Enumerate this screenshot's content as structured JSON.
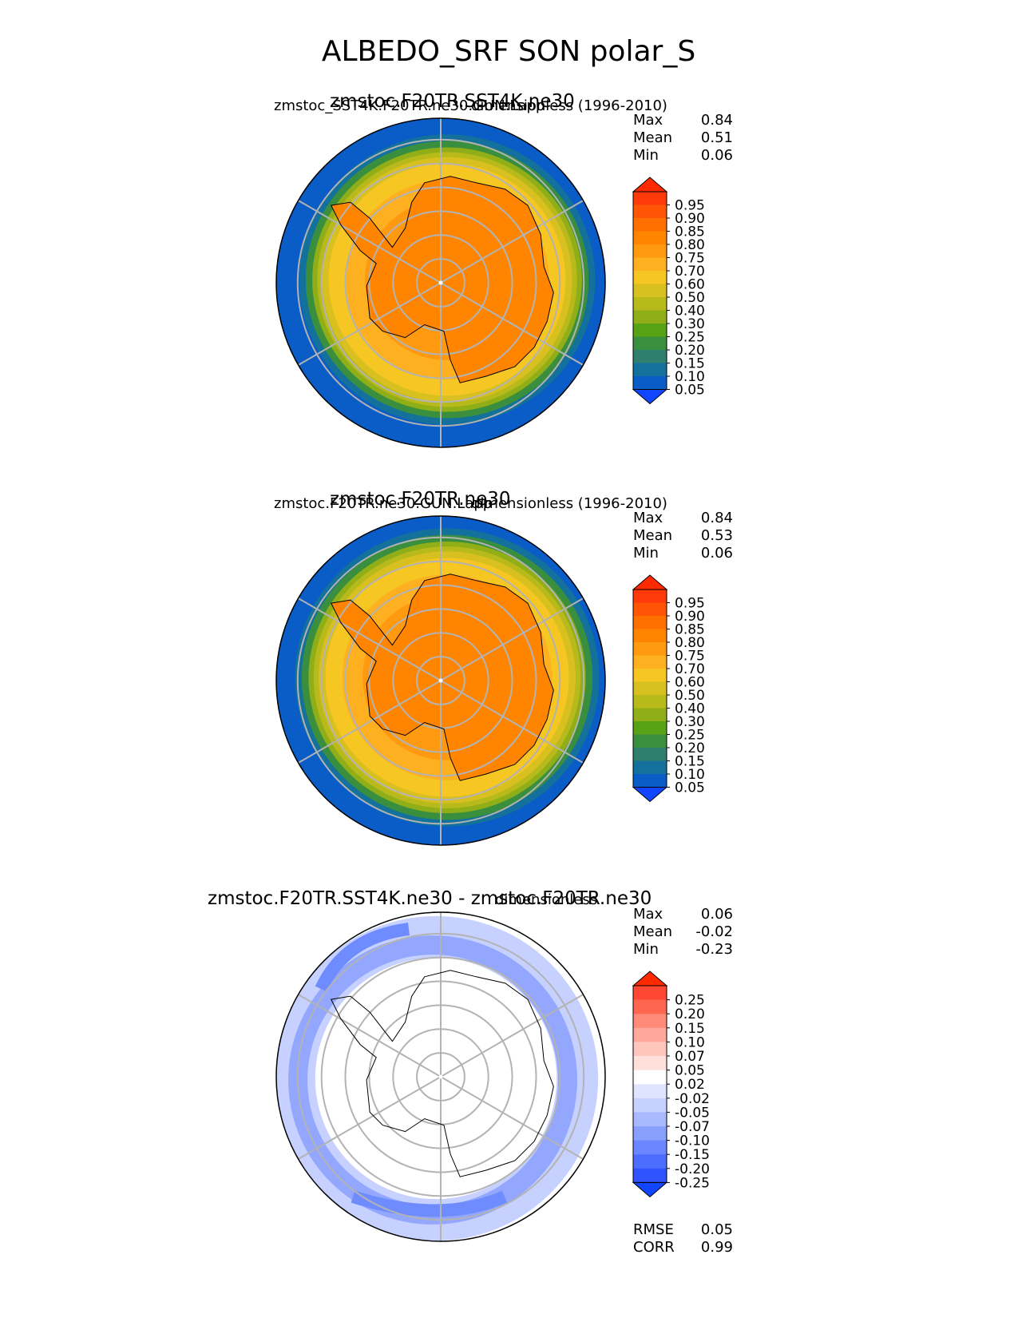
{
  "figure_title": "ALBEDO_SRF SON polar_S",
  "chart_data": [
    {
      "type": "heatmap",
      "projection": "south-polar-stereographic",
      "title": "zmstoc.F20TR.SST4K.ne30",
      "left_label": "zmstoc_SST4K.F20TR.ne30.GUN.Lapp",
      "right_label": "dimensionless (1996-2010)",
      "stats": [
        {
          "label": "Max",
          "value": "0.84"
        },
        {
          "label": "Mean",
          "value": "0.51"
        },
        {
          "label": "Min",
          "value": "0.06"
        }
      ],
      "colorbar": {
        "levels": [
          "0.95",
          "0.90",
          "0.85",
          "0.80",
          "0.75",
          "0.70",
          "0.60",
          "0.50",
          "0.40",
          "0.30",
          "0.25",
          "0.20",
          "0.15",
          "0.10",
          "0.05"
        ],
        "colors": [
          "#ff3a0a",
          "#ff5505",
          "#ff6f00",
          "#ff8500",
          "#ff9a10",
          "#ffb020",
          "#f6c623",
          "#d8c020",
          "#b8b91a",
          "#8fae18",
          "#58a216",
          "#3a8f3e",
          "#2f7f6e",
          "#13719b",
          "#0a5cc7"
        ],
        "extend_top": "#ff2a00",
        "extend_bottom": "#1145ff"
      },
      "rings": {
        "ice_radius_frac": 0.72,
        "ocean_color": "#0a5cc7"
      }
    },
    {
      "type": "heatmap",
      "projection": "south-polar-stereographic",
      "title": "zmstoc.F20TR.ne30",
      "left_label": "zmstoc.F20TR.ne30.GUN.Lapp",
      "right_label": "dimensionless (1996-2010)",
      "stats": [
        {
          "label": "Max",
          "value": "0.84"
        },
        {
          "label": "Mean",
          "value": "0.53"
        },
        {
          "label": "Min",
          "value": "0.06"
        }
      ],
      "colorbar": {
        "levels": [
          "0.95",
          "0.90",
          "0.85",
          "0.80",
          "0.75",
          "0.70",
          "0.60",
          "0.50",
          "0.40",
          "0.30",
          "0.25",
          "0.20",
          "0.15",
          "0.10",
          "0.05"
        ],
        "colors": [
          "#ff3a0a",
          "#ff5505",
          "#ff6f00",
          "#ff8500",
          "#ff9a10",
          "#ffb020",
          "#f6c623",
          "#d8c020",
          "#b8b91a",
          "#8fae18",
          "#58a216",
          "#3a8f3e",
          "#2f7f6e",
          "#13719b",
          "#0a5cc7"
        ],
        "extend_top": "#ff2a00",
        "extend_bottom": "#1145ff"
      },
      "rings": {
        "ice_radius_frac": 0.74,
        "ocean_color": "#0a5cc7"
      }
    },
    {
      "type": "heatmap",
      "projection": "south-polar-stereographic",
      "title": "zmstoc.F20TR.SST4K.ne30 - zmstoc.F20TR.ne30",
      "left_label": "",
      "right_label": "dimensionless",
      "stats": [
        {
          "label": "Max",
          "value": "0.06"
        },
        {
          "label": "Mean",
          "value": "-0.02"
        },
        {
          "label": "Min",
          "value": "-0.23"
        }
      ],
      "extra_stats": [
        {
          "label": "RMSE",
          "value": "0.05"
        },
        {
          "label": "CORR",
          "value": "0.99"
        }
      ],
      "colorbar": {
        "levels": [
          "0.25",
          "0.20",
          "0.15",
          "0.10",
          "0.07",
          "0.05",
          "0.02",
          "-0.02",
          "-0.05",
          "-0.07",
          "-0.10",
          "-0.15",
          "-0.20",
          "-0.25"
        ],
        "colors": [
          "#ff4733",
          "#ff6652",
          "#ff8a78",
          "#ffa89b",
          "#ffc6bd",
          "#ffe0da",
          "#ffffff",
          "#dfe5ff",
          "#c6d1ff",
          "#a9b9ff",
          "#8aa0ff",
          "#6b86ff",
          "#4d6dff",
          "#2f54ff"
        ],
        "extend_top": "#ff2a00",
        "extend_bottom": "#1145ff"
      },
      "rings": {
        "band_radius_frac": 0.86,
        "band_color": "#6f8cff"
      }
    }
  ]
}
